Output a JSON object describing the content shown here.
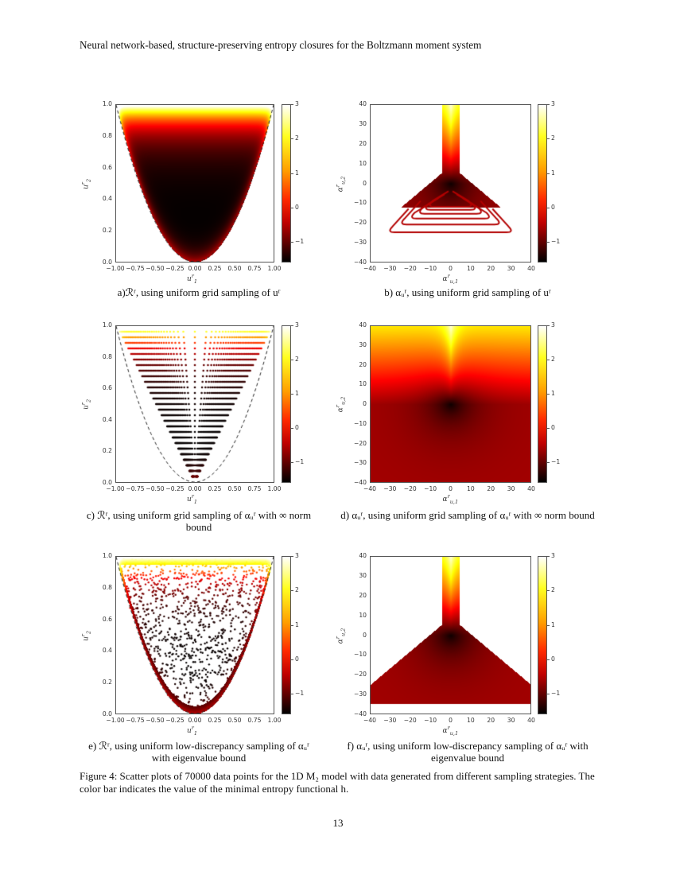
{
  "header": {
    "running_title": "Neural network-based, structure-preserving entropy closures for the Boltzmann moment system"
  },
  "page_number": "13",
  "colormap": {
    "name": "hot",
    "range": [
      -1.6,
      3
    ],
    "ticks": [
      "3",
      "2",
      "1",
      "0",
      "−1"
    ]
  },
  "left_axes": {
    "xticks": [
      "−1.00",
      "−0.75",
      "−0.50",
      "−0.25",
      "0.00",
      "0.25",
      "0.50",
      "0.75",
      "1.00"
    ],
    "yticks": [
      "1.0",
      "0.8",
      "0.6",
      "0.4",
      "0.2",
      "0.0"
    ],
    "xlabel": {
      "base": "u",
      "sup": "r",
      "sub": "1"
    },
    "ylabel": {
      "base": "u",
      "sup": "r",
      "sub": "2"
    }
  },
  "right_axes": {
    "xticks": [
      "−40",
      "−30",
      "−20",
      "−10",
      "0",
      "10",
      "20",
      "30",
      "40"
    ],
    "yticks": [
      "40",
      "30",
      "20",
      "10",
      "0",
      "−10",
      "−20",
      "−30",
      "−40"
    ],
    "xlabel": {
      "base": "α",
      "sup": "r",
      "sub": "u,1"
    },
    "ylabel": {
      "base": "α",
      "sup": "r",
      "sub": "u,2"
    }
  },
  "panels": [
    {
      "id": "a",
      "kind": "left-grid",
      "caption": "a)ℛʳ, using uniform grid sampling of uʳ"
    },
    {
      "id": "b",
      "kind": "right-grid",
      "caption": "b) αᵤʳ, using uniform grid sampling of uʳ"
    },
    {
      "id": "c",
      "kind": "left-rays",
      "caption": "c) ℛʳ, using uniform grid sampling of αᵤʳ with ∞ norm bound"
    },
    {
      "id": "d",
      "kind": "right-full",
      "caption": "d) αᵤʳ, using uniform grid sampling of αᵤʳ with ∞ norm bound"
    },
    {
      "id": "e",
      "kind": "left-random",
      "caption": "e) ℛʳ, using uniform low-discrepancy sampling of αᵤʳ with eigenvalue bound"
    },
    {
      "id": "f",
      "kind": "right-eig",
      "caption": "f) αᵤʳ, using uniform low-discrepancy sampling of αᵤʳ with eigenvalue bound"
    }
  ],
  "figure_caption": "Figure 4: Scatter plots of 70000 data points for the 1D M₂ model with data generated from different sampling strategies. The color bar indicates the value of the minimal entropy functional h."
}
